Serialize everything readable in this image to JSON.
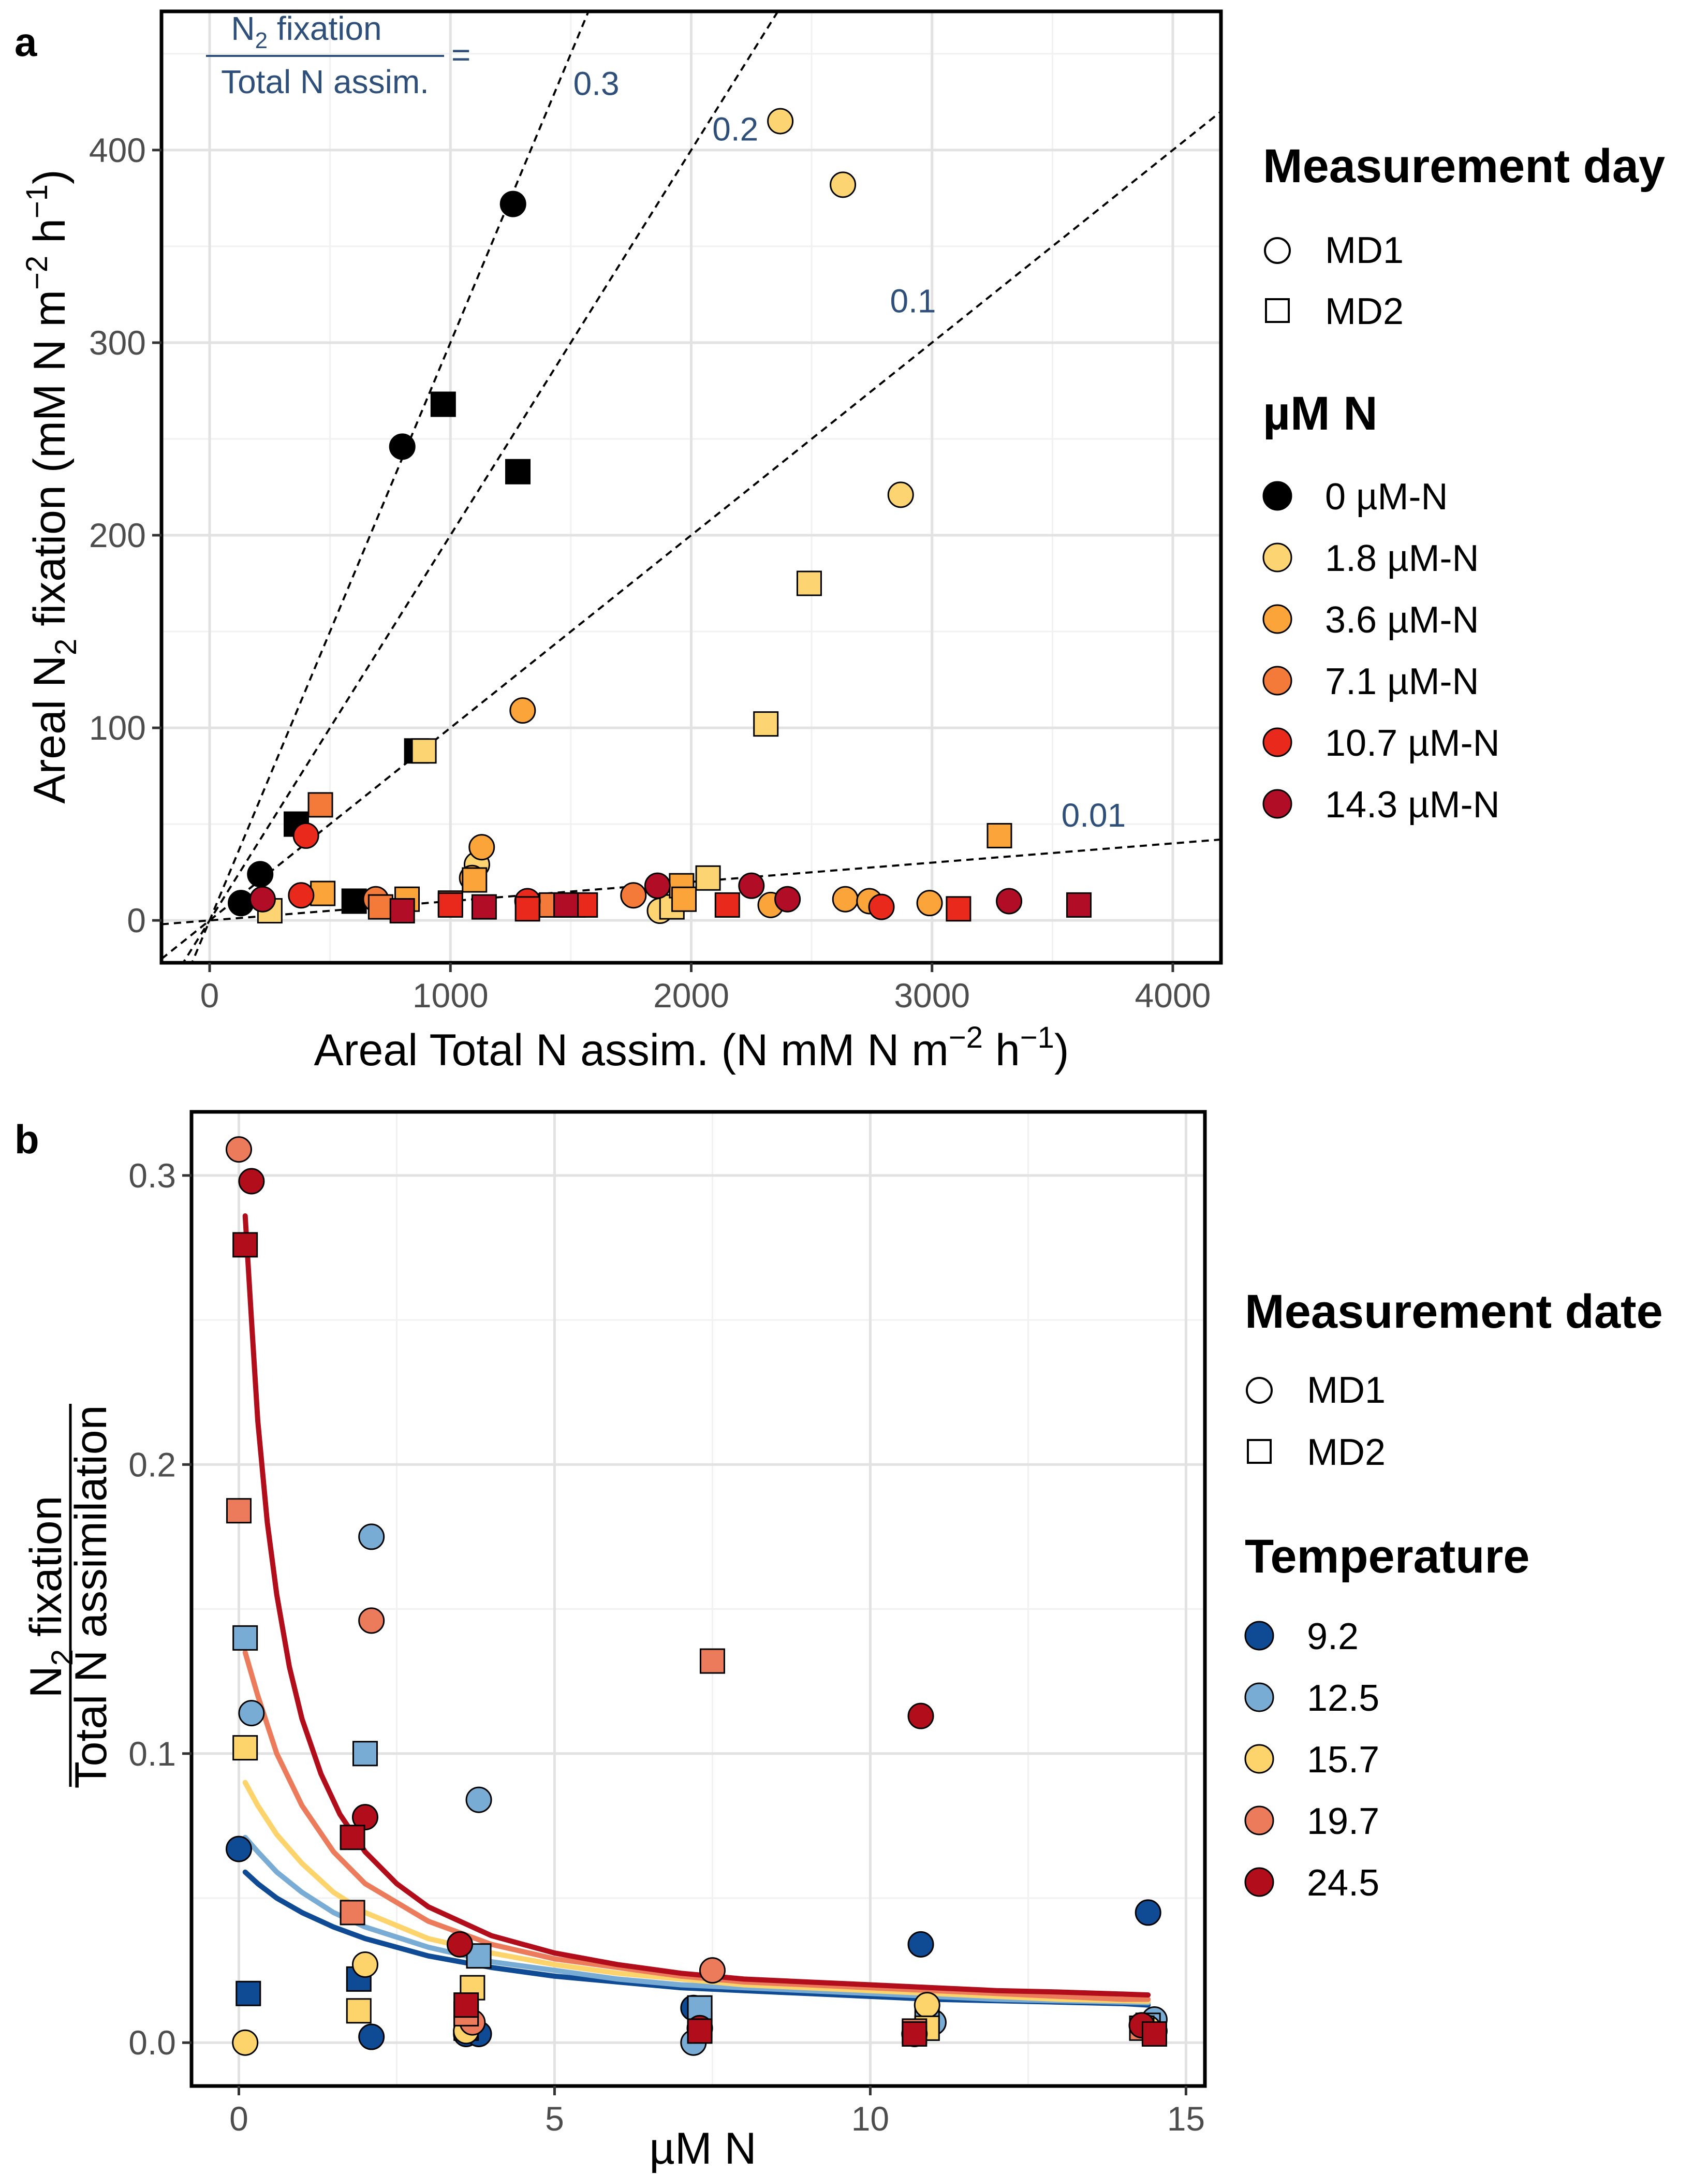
{
  "colors": {
    "grid_major": "#e2e2e2",
    "grid_minor": "#f1f1f1",
    "ratio_label": "#2e4f7a",
    "n_levels": {
      "0 µM-N": "#000000",
      "1.8 µM-N": "#fcd472",
      "3.6 µM-N": "#faa43a",
      "7.1 µM-N": "#f47a3a",
      "10.7 µM-N": "#e8291c",
      "14.3 µM-N": "#b10d26"
    },
    "temps": {
      "9.2": "#0f4a94",
      "12.5": "#79acd4",
      "15.7": "#fdd46b",
      "19.7": "#ec7b5c",
      "24.5": "#b10d1b"
    }
  },
  "panel_a": {
    "tag": "a",
    "title_fraction": {
      "numerator": "N2 fixation",
      "denominator": "Total N assim.",
      "equals": "="
    },
    "legend_shape": {
      "title": "Measurement day",
      "items": [
        "MD1",
        "MD2"
      ]
    },
    "legend_color": {
      "title": "µM N",
      "items": [
        "0 µM-N",
        "1.8 µM-N",
        "3.6 µM-N",
        "7.1 µM-N",
        "10.7 µM-N",
        "14.3 µM-N"
      ]
    }
  },
  "panel_b": {
    "tag": "b",
    "legend_shape": {
      "title": "Measurement date",
      "items": [
        "MD1",
        "MD2"
      ]
    },
    "legend_color": {
      "title": "Temperature",
      "items": [
        "9.2",
        "12.5",
        "15.7",
        "19.7",
        "24.5"
      ]
    }
  },
  "chart_data": [
    {
      "type": "scatter",
      "panel": "a",
      "xlabel": "Areal Total N assim. (N mM N m−2 h−1)",
      "ylabel": "Areal N2 fixation (mM N m−2 h−1)",
      "xlim": [
        -200,
        4200
      ],
      "ylim": [
        -22,
        472
      ],
      "xticks": [
        0,
        1000,
        2000,
        3000,
        4000
      ],
      "yticks": [
        0,
        100,
        200,
        300,
        400
      ],
      "grid": true,
      "reference_lines": [
        {
          "label": "0.3",
          "slope": 0.3
        },
        {
          "label": "0.2",
          "slope": 0.2
        },
        {
          "label": "0.1",
          "slope": 0.1
        },
        {
          "label": "0.01",
          "slope": 0.01
        }
      ],
      "series": [
        {
          "name": "0 µM-N",
          "points": [
            {
              "x": 130,
              "y": 9,
              "shape": "MD1"
            },
            {
              "x": 210,
              "y": 24,
              "shape": "MD1"
            },
            {
              "x": 800,
              "y": 246,
              "shape": "MD1"
            },
            {
              "x": 1260,
              "y": 372,
              "shape": "MD1"
            },
            {
              "x": 360,
              "y": 50,
              "shape": "MD2"
            },
            {
              "x": 600,
              "y": 10,
              "shape": "MD2"
            },
            {
              "x": 860,
              "y": 88,
              "shape": "MD2"
            },
            {
              "x": 970,
              "y": 268,
              "shape": "MD2"
            },
            {
              "x": 1280,
              "y": 233,
              "shape": "MD2"
            }
          ]
        },
        {
          "name": "1.8 µM-N",
          "points": [
            {
              "x": 1110,
              "y": 29,
              "shape": "MD1"
            },
            {
              "x": 1870,
              "y": 5,
              "shape": "MD1"
            },
            {
              "x": 2370,
              "y": 415,
              "shape": "MD1"
            },
            {
              "x": 2630,
              "y": 382,
              "shape": "MD1"
            },
            {
              "x": 2870,
              "y": 221,
              "shape": "MD1"
            },
            {
              "x": 250,
              "y": 5,
              "shape": "MD2"
            },
            {
              "x": 890,
              "y": 88,
              "shape": "MD2"
            },
            {
              "x": 1920,
              "y": 7,
              "shape": "MD2"
            },
            {
              "x": 2070,
              "y": 22,
              "shape": "MD2"
            },
            {
              "x": 2310,
              "y": 102,
              "shape": "MD2"
            },
            {
              "x": 2490,
              "y": 175,
              "shape": "MD2"
            }
          ]
        },
        {
          "name": "3.6 µM-N",
          "points": [
            {
              "x": 1090,
              "y": 22,
              "shape": "MD1"
            },
            {
              "x": 1130,
              "y": 38,
              "shape": "MD1"
            },
            {
              "x": 1300,
              "y": 109,
              "shape": "MD1"
            },
            {
              "x": 2330,
              "y": 8,
              "shape": "MD1"
            },
            {
              "x": 2640,
              "y": 11,
              "shape": "MD1"
            },
            {
              "x": 2740,
              "y": 10,
              "shape": "MD1"
            },
            {
              "x": 2990,
              "y": 9,
              "shape": "MD1"
            },
            {
              "x": 470,
              "y": 14,
              "shape": "MD2"
            },
            {
              "x": 820,
              "y": 11,
              "shape": "MD2"
            },
            {
              "x": 1100,
              "y": 21,
              "shape": "MD2"
            },
            {
              "x": 1960,
              "y": 18,
              "shape": "MD2"
            },
            {
              "x": 1970,
              "y": 11,
              "shape": "MD2"
            },
            {
              "x": 3280,
              "y": 44,
              "shape": "MD2"
            }
          ]
        },
        {
          "name": "7.1 µM-N",
          "points": [
            {
              "x": 690,
              "y": 11,
              "shape": "MD1"
            },
            {
              "x": 1760,
              "y": 13,
              "shape": "MD1"
            },
            {
              "x": 460,
              "y": 60,
              "shape": "MD2"
            },
            {
              "x": 710,
              "y": 7,
              "shape": "MD2"
            },
            {
              "x": 1000,
              "y": 9,
              "shape": "MD2"
            },
            {
              "x": 1420,
              "y": 8,
              "shape": "MD2"
            },
            {
              "x": 1510,
              "y": 8,
              "shape": "MD2"
            }
          ]
        },
        {
          "name": "10.7 µM-N",
          "points": [
            {
              "x": 400,
              "y": 44,
              "shape": "MD1"
            },
            {
              "x": 380,
              "y": 13,
              "shape": "MD1"
            },
            {
              "x": 1320,
              "y": 10,
              "shape": "MD1"
            },
            {
              "x": 2790,
              "y": 7,
              "shape": "MD1"
            },
            {
              "x": 1000,
              "y": 8,
              "shape": "MD2"
            },
            {
              "x": 1320,
              "y": 6,
              "shape": "MD2"
            },
            {
              "x": 1560,
              "y": 8,
              "shape": "MD2"
            },
            {
              "x": 2150,
              "y": 8,
              "shape": "MD2"
            },
            {
              "x": 3110,
              "y": 6,
              "shape": "MD2"
            }
          ]
        },
        {
          "name": "14.3 µM-N",
          "points": [
            {
              "x": 220,
              "y": 11,
              "shape": "MD1"
            },
            {
              "x": 1860,
              "y": 18,
              "shape": "MD1"
            },
            {
              "x": 2250,
              "y": 18,
              "shape": "MD1"
            },
            {
              "x": 2400,
              "y": 11,
              "shape": "MD1"
            },
            {
              "x": 3320,
              "y": 10,
              "shape": "MD1"
            },
            {
              "x": 800,
              "y": 5,
              "shape": "MD2"
            },
            {
              "x": 1140,
              "y": 7,
              "shape": "MD2"
            },
            {
              "x": 1480,
              "y": 8,
              "shape": "MD2"
            },
            {
              "x": 3610,
              "y": 8,
              "shape": "MD2"
            }
          ]
        }
      ]
    },
    {
      "type": "scatter",
      "panel": "b",
      "xlabel": "µM N",
      "ylabel": "N2 fixation / Total N assimilation",
      "xlim": [
        -0.75,
        15.3
      ],
      "ylim": [
        -0.015,
        0.322
      ],
      "xticks": [
        0,
        5,
        10,
        15
      ],
      "yticks": [
        0.0,
        0.1,
        0.2,
        0.3
      ],
      "ytick_labels": [
        "0.0",
        "0.1",
        "0.2",
        "0.3"
      ],
      "grid": true,
      "fit_curves": [
        {
          "name": "9.2",
          "x": [
            0.1,
            0.3,
            0.6,
            1,
            1.5,
            2,
            3,
            4,
            5,
            6,
            7,
            8,
            9,
            10,
            11,
            12,
            13,
            14,
            14.4
          ],
          "y": [
            0.059,
            0.055,
            0.05,
            0.045,
            0.04,
            0.036,
            0.03,
            0.026,
            0.023,
            0.021,
            0.019,
            0.018,
            0.017,
            0.016,
            0.015,
            0.0145,
            0.014,
            0.0135,
            0.013
          ]
        },
        {
          "name": "12.5",
          "x": [
            0.1,
            0.3,
            0.6,
            1,
            1.5,
            2,
            3,
            4,
            5,
            6,
            7,
            8,
            9,
            10,
            11,
            12,
            13,
            14,
            14.4
          ],
          "y": [
            0.071,
            0.066,
            0.059,
            0.052,
            0.045,
            0.04,
            0.033,
            0.028,
            0.025,
            0.022,
            0.02,
            0.019,
            0.018,
            0.017,
            0.016,
            0.015,
            0.0145,
            0.014,
            0.0138
          ]
        },
        {
          "name": "15.7",
          "x": [
            0.1,
            0.3,
            0.6,
            1,
            1.5,
            2,
            3,
            4,
            5,
            6,
            7,
            8,
            9,
            10,
            11,
            12,
            13,
            14,
            14.4
          ],
          "y": [
            0.09,
            0.082,
            0.072,
            0.062,
            0.052,
            0.045,
            0.036,
            0.031,
            0.027,
            0.024,
            0.022,
            0.02,
            0.019,
            0.018,
            0.017,
            0.016,
            0.015,
            0.0145,
            0.0143
          ]
        },
        {
          "name": "19.7",
          "x": [
            0.1,
            0.3,
            0.6,
            1,
            1.5,
            2,
            3,
            4,
            5,
            6,
            7,
            8,
            9,
            10,
            11,
            12,
            13,
            14,
            14.4
          ],
          "y": [
            0.135,
            0.12,
            0.1,
            0.082,
            0.066,
            0.055,
            0.042,
            0.034,
            0.029,
            0.026,
            0.023,
            0.021,
            0.02,
            0.019,
            0.018,
            0.017,
            0.016,
            0.015,
            0.015
          ]
        },
        {
          "name": "24.5",
          "x": [
            0.1,
            0.2,
            0.3,
            0.45,
            0.6,
            0.8,
            1,
            1.3,
            1.6,
            2,
            2.5,
            3,
            4,
            5,
            6,
            7,
            8,
            9,
            10,
            11,
            12,
            13,
            14,
            14.4
          ],
          "y": [
            0.286,
            0.25,
            0.215,
            0.18,
            0.155,
            0.13,
            0.112,
            0.093,
            0.079,
            0.066,
            0.055,
            0.047,
            0.037,
            0.031,
            0.027,
            0.024,
            0.022,
            0.021,
            0.02,
            0.019,
            0.018,
            0.0175,
            0.0168,
            0.0165
          ]
        }
      ],
      "series": [
        {
          "name": "9.2",
          "points": [
            {
              "x": 0.0,
              "y": 0.067,
              "shape": "MD1"
            },
            {
              "x": 2.1,
              "y": 0.002,
              "shape": "MD1"
            },
            {
              "x": 3.6,
              "y": 0.003,
              "shape": "MD1"
            },
            {
              "x": 3.8,
              "y": 0.003,
              "shape": "MD1"
            },
            {
              "x": 7.2,
              "y": 0.012,
              "shape": "MD1"
            },
            {
              "x": 10.8,
              "y": 0.034,
              "shape": "MD1"
            },
            {
              "x": 14.4,
              "y": 0.045,
              "shape": "MD1"
            },
            {
              "x": 14.5,
              "y": 0.004,
              "shape": "MD1"
            },
            {
              "x": 0.15,
              "y": 0.017,
              "shape": "MD2"
            },
            {
              "x": 1.9,
              "y": 0.022,
              "shape": "MD2"
            },
            {
              "x": 3.6,
              "y": 0.005,
              "shape": "MD2"
            },
            {
              "x": 7.3,
              "y": 0.006,
              "shape": "MD2"
            },
            {
              "x": 10.9,
              "y": 0.005,
              "shape": "MD2"
            },
            {
              "x": 14.5,
              "y": 0.004,
              "shape": "MD2"
            }
          ]
        },
        {
          "name": "12.5",
          "points": [
            {
              "x": 0.2,
              "y": 0.114,
              "shape": "MD1"
            },
            {
              "x": 2.1,
              "y": 0.175,
              "shape": "MD1"
            },
            {
              "x": 3.8,
              "y": 0.084,
              "shape": "MD1"
            },
            {
              "x": 7.2,
              "y": 0.0,
              "shape": "MD1"
            },
            {
              "x": 11.0,
              "y": 0.007,
              "shape": "MD1"
            },
            {
              "x": 14.5,
              "y": 0.008,
              "shape": "MD1"
            },
            {
              "x": 0.1,
              "y": 0.14,
              "shape": "MD2"
            },
            {
              "x": 2.0,
              "y": 0.1,
              "shape": "MD2"
            },
            {
              "x": 3.8,
              "y": 0.03,
              "shape": "MD2"
            },
            {
              "x": 7.3,
              "y": 0.012,
              "shape": "MD2"
            },
            {
              "x": 10.9,
              "y": 0.008,
              "shape": "MD2"
            },
            {
              "x": 14.4,
              "y": 0.006,
              "shape": "MD2"
            }
          ]
        },
        {
          "name": "15.7",
          "points": [
            {
              "x": 0.1,
              "y": 0.0,
              "shape": "MD1"
            },
            {
              "x": 2.0,
              "y": 0.027,
              "shape": "MD1"
            },
            {
              "x": 3.6,
              "y": 0.004,
              "shape": "MD1"
            },
            {
              "x": 10.9,
              "y": 0.013,
              "shape": "MD1"
            },
            {
              "x": 14.4,
              "y": 0.005,
              "shape": "MD1"
            },
            {
              "x": 0.1,
              "y": 0.102,
              "shape": "MD2"
            },
            {
              "x": 1.9,
              "y": 0.011,
              "shape": "MD2"
            },
            {
              "x": 3.7,
              "y": 0.019,
              "shape": "MD2"
            },
            {
              "x": 10.9,
              "y": 0.005,
              "shape": "MD2"
            }
          ]
        },
        {
          "name": "19.7",
          "points": [
            {
              "x": 0.0,
              "y": 0.309,
              "shape": "MD1"
            },
            {
              "x": 2.1,
              "y": 0.146,
              "shape": "MD1"
            },
            {
              "x": 3.7,
              "y": 0.007,
              "shape": "MD1"
            },
            {
              "x": 7.5,
              "y": 0.025,
              "shape": "MD1"
            },
            {
              "x": 10.7,
              "y": 0.003,
              "shape": "MD1"
            },
            {
              "x": 0.0,
              "y": 0.184,
              "shape": "MD2"
            },
            {
              "x": 1.8,
              "y": 0.045,
              "shape": "MD2"
            },
            {
              "x": 3.6,
              "y": 0.01,
              "shape": "MD2"
            },
            {
              "x": 7.5,
              "y": 0.132,
              "shape": "MD2"
            },
            {
              "x": 10.7,
              "y": 0.004,
              "shape": "MD2"
            },
            {
              "x": 14.3,
              "y": 0.005,
              "shape": "MD2"
            }
          ]
        },
        {
          "name": "24.5",
          "points": [
            {
              "x": 0.2,
              "y": 0.298,
              "shape": "MD1"
            },
            {
              "x": 2.0,
              "y": 0.078,
              "shape": "MD1"
            },
            {
              "x": 3.5,
              "y": 0.034,
              "shape": "MD1"
            },
            {
              "x": 7.3,
              "y": 0.005,
              "shape": "MD1"
            },
            {
              "x": 10.8,
              "y": 0.113,
              "shape": "MD1"
            },
            {
              "x": 14.3,
              "y": 0.006,
              "shape": "MD1"
            },
            {
              "x": 0.1,
              "y": 0.276,
              "shape": "MD2"
            },
            {
              "x": 1.8,
              "y": 0.071,
              "shape": "MD2"
            },
            {
              "x": 3.6,
              "y": 0.013,
              "shape": "MD2"
            },
            {
              "x": 7.3,
              "y": 0.004,
              "shape": "MD2"
            },
            {
              "x": 10.7,
              "y": 0.003,
              "shape": "MD2"
            },
            {
              "x": 14.5,
              "y": 0.003,
              "shape": "MD2"
            }
          ]
        }
      ]
    }
  ]
}
